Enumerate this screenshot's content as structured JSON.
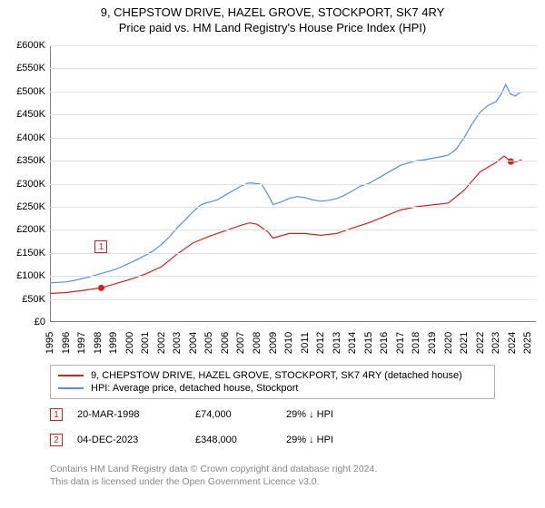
{
  "title1": "9, CHEPSTOW DRIVE, HAZEL GROVE, STOCKPORT, SK7 4RY",
  "title2": "Price paid vs. HM Land Registry's House Price Index (HPI)",
  "chart": {
    "type": "line",
    "xlim": [
      1995,
      2025.5
    ],
    "ylim": [
      0,
      600000
    ],
    "ytick_step": 50000,
    "yticks": [
      "£0",
      "£50K",
      "£100K",
      "£150K",
      "£200K",
      "£250K",
      "£300K",
      "£350K",
      "£400K",
      "£450K",
      "£500K",
      "£550K",
      "£600K"
    ],
    "xticks": [
      1995,
      1996,
      1997,
      1998,
      1999,
      2000,
      2001,
      2002,
      2003,
      2004,
      2005,
      2006,
      2007,
      2008,
      2009,
      2010,
      2011,
      2012,
      2013,
      2014,
      2015,
      2016,
      2017,
      2018,
      2019,
      2020,
      2021,
      2022,
      2023,
      2024,
      2025
    ],
    "grid_color": "#e0e0e0",
    "background_color": "#ffffff",
    "axis_color": "#808080",
    "series": {
      "hpi": {
        "color": "#5b8ed6",
        "width": 1.2,
        "label": "HPI: Average price, detached house, Stockport",
        "points": [
          [
            1995,
            85000
          ],
          [
            1995.5,
            86000
          ],
          [
            1996,
            87000
          ],
          [
            1996.5,
            90000
          ],
          [
            1997,
            94000
          ],
          [
            1997.5,
            98000
          ],
          [
            1998,
            103000
          ],
          [
            1998.5,
            108000
          ],
          [
            1999,
            113000
          ],
          [
            1999.5,
            120000
          ],
          [
            2000,
            128000
          ],
          [
            2000.5,
            136000
          ],
          [
            2001,
            145000
          ],
          [
            2001.5,
            155000
          ],
          [
            2002,
            168000
          ],
          [
            2002.5,
            185000
          ],
          [
            2003,
            205000
          ],
          [
            2003.5,
            222000
          ],
          [
            2004,
            240000
          ],
          [
            2004.5,
            255000
          ],
          [
            2005,
            260000
          ],
          [
            2005.5,
            265000
          ],
          [
            2006,
            275000
          ],
          [
            2006.5,
            285000
          ],
          [
            2007,
            295000
          ],
          [
            2007.5,
            302000
          ],
          [
            2008,
            300000
          ],
          [
            2008.3,
            298000
          ],
          [
            2008.7,
            275000
          ],
          [
            2009,
            255000
          ],
          [
            2009.5,
            260000
          ],
          [
            2010,
            268000
          ],
          [
            2010.5,
            272000
          ],
          [
            2011,
            270000
          ],
          [
            2011.5,
            265000
          ],
          [
            2012,
            262000
          ],
          [
            2012.5,
            264000
          ],
          [
            2013,
            268000
          ],
          [
            2013.5,
            275000
          ],
          [
            2014,
            285000
          ],
          [
            2014.5,
            295000
          ],
          [
            2015,
            300000
          ],
          [
            2015.5,
            310000
          ],
          [
            2016,
            320000
          ],
          [
            2016.5,
            330000
          ],
          [
            2017,
            340000
          ],
          [
            2017.5,
            345000
          ],
          [
            2018,
            350000
          ],
          [
            2018.5,
            352000
          ],
          [
            2019,
            355000
          ],
          [
            2019.5,
            358000
          ],
          [
            2020,
            362000
          ],
          [
            2020.5,
            375000
          ],
          [
            2021,
            400000
          ],
          [
            2021.5,
            430000
          ],
          [
            2022,
            455000
          ],
          [
            2022.5,
            470000
          ],
          [
            2023,
            478000
          ],
          [
            2023.3,
            493000
          ],
          [
            2023.6,
            515000
          ],
          [
            2023.9,
            495000
          ],
          [
            2024.2,
            490000
          ],
          [
            2024.5,
            498000
          ]
        ]
      },
      "price_paid": {
        "color": "#d92020",
        "width": 1.2,
        "label": "9, CHEPSTOW DRIVE, HAZEL GROVE, STOCKPORT, SK7 4RY (detached house)",
        "points": [
          [
            1995,
            62000
          ],
          [
            1996,
            64000
          ],
          [
            1997,
            68000
          ],
          [
            1998,
            73000
          ],
          [
            1998.22,
            74000
          ],
          [
            1999,
            82000
          ],
          [
            2000,
            92000
          ],
          [
            2001,
            104000
          ],
          [
            2002,
            120000
          ],
          [
            2003,
            148000
          ],
          [
            2004,
            172000
          ],
          [
            2005,
            186000
          ],
          [
            2006,
            198000
          ],
          [
            2007,
            210000
          ],
          [
            2007.5,
            215000
          ],
          [
            2008,
            212000
          ],
          [
            2008.7,
            195000
          ],
          [
            2009,
            182000
          ],
          [
            2010,
            192000
          ],
          [
            2011,
            192000
          ],
          [
            2012,
            188000
          ],
          [
            2013,
            192000
          ],
          [
            2014,
            204000
          ],
          [
            2015,
            215000
          ],
          [
            2016,
            229000
          ],
          [
            2017,
            243000
          ],
          [
            2018,
            250000
          ],
          [
            2019,
            254000
          ],
          [
            2020,
            258000
          ],
          [
            2021,
            286000
          ],
          [
            2022,
            326000
          ],
          [
            2023,
            346000
          ],
          [
            2023.5,
            360000
          ],
          [
            2023.93,
            348000
          ],
          [
            2024.3,
            348000
          ],
          [
            2024.6,
            352000
          ]
        ]
      }
    },
    "sale_markers": [
      {
        "num": "1",
        "x": 1998.22,
        "y": 74000,
        "color": "#d92020",
        "label_y_offset": -45
      },
      {
        "num": "2",
        "x": 2023.93,
        "y": 348000,
        "color": "#d92020",
        "label_y_offset": -248
      }
    ]
  },
  "legend": {
    "items": [
      {
        "color": "#d92020",
        "text": "9, CHEPSTOW DRIVE, HAZEL GROVE, STOCKPORT, SK7 4RY (detached house)"
      },
      {
        "color": "#5b8ed6",
        "text": "HPI: Average price, detached house, Stockport"
      }
    ]
  },
  "sales": [
    {
      "num": "1",
      "marker_color": "#d92020",
      "date": "20-MAR-1998",
      "price": "£74,000",
      "hpi": "29% ↓ HPI"
    },
    {
      "num": "2",
      "marker_color": "#d92020",
      "date": "04-DEC-2023",
      "price": "£348,000",
      "hpi": "29% ↓ HPI"
    }
  ],
  "footer1": "Contains HM Land Registry data © Crown copyright and database right 2024.",
  "footer2": "This data is licensed under the Open Government Licence v3.0."
}
